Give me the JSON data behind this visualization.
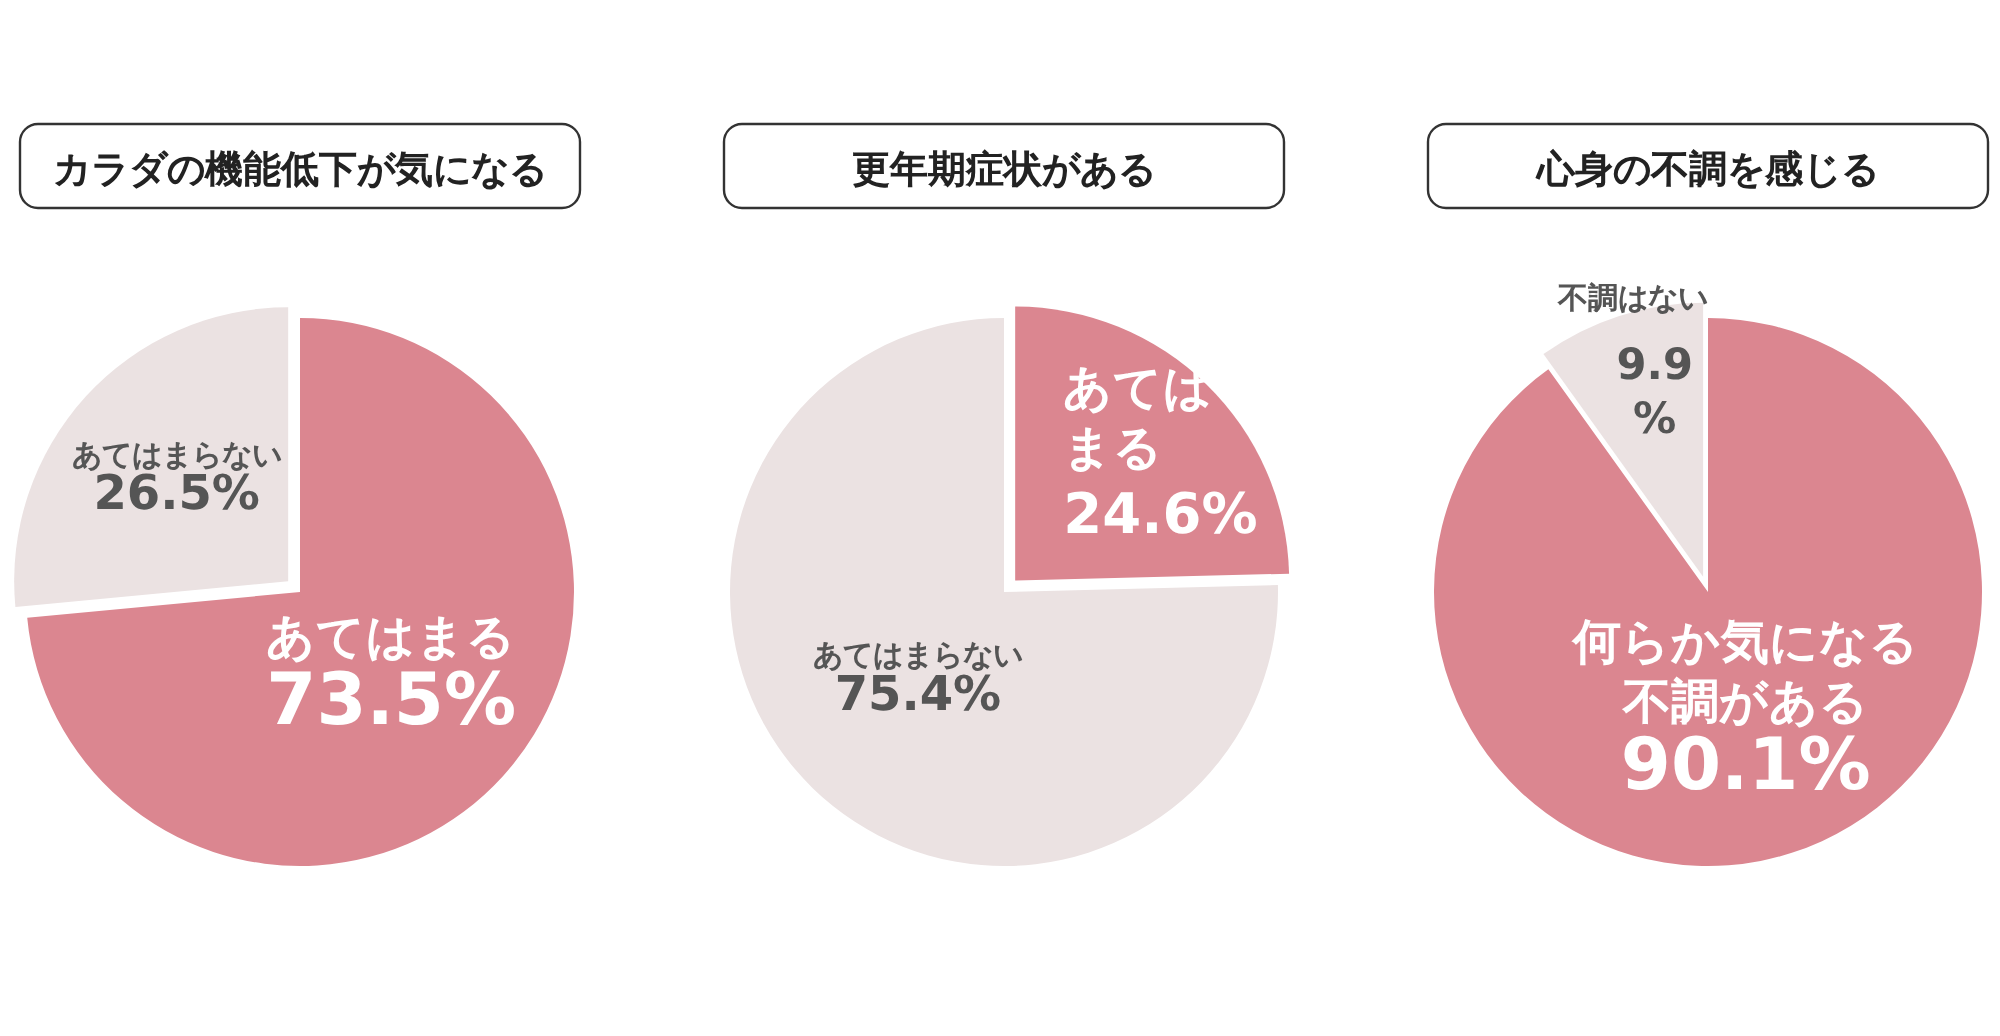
{
  "chart_data": [
    {
      "type": "pie",
      "title": "カラダの機能低下が気になる",
      "categories": [
        "あてはまる",
        "あてはまらない"
      ],
      "values": [
        73.5,
        26.5
      ],
      "value_labels": [
        "73.5%",
        "26.5%"
      ],
      "colors": [
        "#db8690",
        "#ebe2e2"
      ]
    },
    {
      "type": "pie",
      "title": "更年期症状がある",
      "categories": [
        "あてはまる",
        "あてはまらない"
      ],
      "values": [
        24.6,
        75.4
      ],
      "value_labels": [
        "24.6%",
        "75.4%"
      ],
      "colors": [
        "#db8690",
        "#ebe2e2"
      ]
    },
    {
      "type": "pie",
      "title": "心身の不調を感じる",
      "categories": [
        "何らか気になる不調がある",
        "不調はない"
      ],
      "values": [
        90.1,
        9.9
      ],
      "value_labels": [
        "90.1%",
        "9.9%"
      ],
      "colors": [
        "#db8690",
        "#ebe2e2"
      ]
    }
  ]
}
